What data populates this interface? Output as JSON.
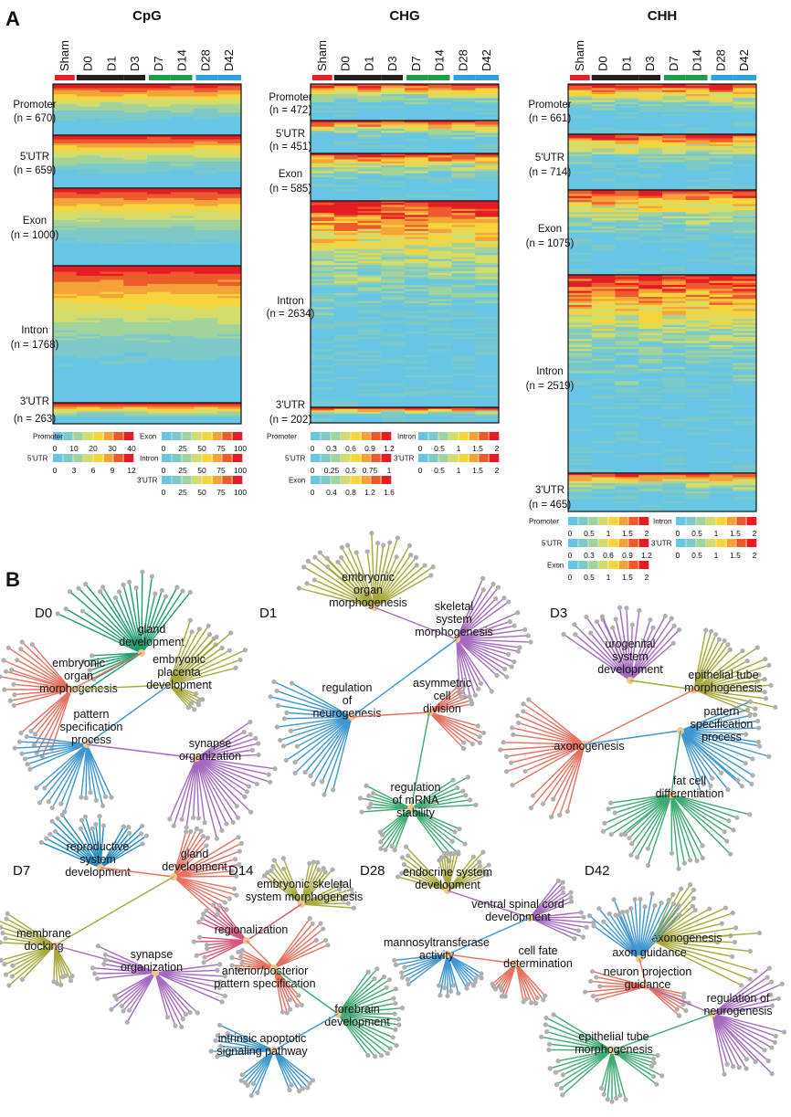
{
  "panelA": {
    "label": "A"
  },
  "panelB": {
    "label": "B"
  },
  "groups": [
    "Sham",
    "D0",
    "D1",
    "D3",
    "D7",
    "D14",
    "D28",
    "D42"
  ],
  "group_bar_colors": [
    "#e4202a",
    "#231f20",
    "#231f20",
    "#231f20",
    "#1f9e49",
    "#1f9e49",
    "#2fa3dd",
    "#2fa3dd"
  ],
  "heatmap_colors": [
    "#66c6e4",
    "#7cc9c8",
    "#a2d39b",
    "#d4dd6a",
    "#f5d43c",
    "#f5a23a",
    "#ee5a2c",
    "#e51c23"
  ],
  "heatmaps": [
    {
      "title": "CpG",
      "regions": [
        {
          "label": "Promoter",
          "n": "(n = 670)"
        },
        {
          "label": "5'UTR",
          "n": "(n = 659)"
        },
        {
          "label": "Exon",
          "n": "(n = 1000)"
        },
        {
          "label": "Intron",
          "n": "(n = 1768)"
        },
        {
          "label": "3'UTR",
          "n": "(n = 263)"
        }
      ],
      "colorbars": [
        {
          "name": "Promoter",
          "ticks": [
            "0",
            "10",
            "20",
            "30",
            "40"
          ]
        },
        {
          "name": "Exon",
          "ticks": [
            "0",
            "25",
            "50",
            "75",
            "100"
          ]
        },
        {
          "name": "5'UTR",
          "ticks": [
            "0",
            "3",
            "6",
            "9",
            "12"
          ]
        },
        {
          "name": "Intron",
          "ticks": [
            "0",
            "25",
            "50",
            "75",
            "100"
          ]
        },
        {
          "name": "3'UTR",
          "ticks": [
            "0",
            "25",
            "50",
            "75",
            "100"
          ]
        }
      ]
    },
    {
      "title": "CHG",
      "regions": [
        {
          "label": "Promoter",
          "n": "(n = 472)"
        },
        {
          "label": "5'UTR",
          "n": "(n = 451)"
        },
        {
          "label": "Exon",
          "n": "(n = 585)"
        },
        {
          "label": "Intron",
          "n": "(n = 2634)"
        },
        {
          "label": "3'UTR",
          "n": "(n = 202)"
        }
      ],
      "colorbars": [
        {
          "name": "Promoter",
          "ticks": [
            "0",
            "0.3",
            "0.6",
            "0.9",
            "1.2"
          ]
        },
        {
          "name": "Intron",
          "ticks": [
            "0",
            "0.5",
            "1",
            "1.5",
            "2"
          ]
        },
        {
          "name": "5'UTR",
          "ticks": [
            "0",
            "0.25",
            "0.5",
            "0.75",
            "1"
          ]
        },
        {
          "name": "3'UTR",
          "ticks": [
            "0",
            "0.5",
            "1",
            "1.5",
            "2"
          ]
        },
        {
          "name": "Exon",
          "ticks": [
            "0",
            "0.4",
            "0.8",
            "1.2",
            "1.6"
          ]
        }
      ]
    },
    {
      "title": "CHH",
      "regions": [
        {
          "label": "Promoter",
          "n": "(n = 661)"
        },
        {
          "label": "5'UTR",
          "n": "(n = 714)"
        },
        {
          "label": "Exon",
          "n": "(n = 1075)"
        },
        {
          "label": "Intron",
          "n": "(n = 2519)"
        },
        {
          "label": "3'UTR",
          "n": "(n = 465)"
        }
      ],
      "colorbars": [
        {
          "name": "Promoter",
          "ticks": [
            "0",
            "0.5",
            "1",
            "1.5",
            "2"
          ]
        },
        {
          "name": "Intron",
          "ticks": [
            "0",
            "0.5",
            "1",
            "1.5",
            "2"
          ]
        },
        {
          "name": "5'UTR",
          "ticks": [
            "0",
            "0.3",
            "0.6",
            "0.9",
            "1.2"
          ]
        },
        {
          "name": "3'UTR",
          "ticks": [
            "0",
            "0.5",
            "1",
            "1.5",
            "2"
          ]
        },
        {
          "name": "Exon",
          "ticks": [
            "0",
            "0.5",
            "1",
            "1.5",
            "2"
          ]
        }
      ]
    }
  ],
  "networks": [
    {
      "title": "D0",
      "terms": [
        {
          "text": "gland\ndevelopment",
          "color": "#1f9e6e"
        },
        {
          "text": "embryonic\norgan\nmorphogenesis",
          "color": "#e8705e"
        },
        {
          "text": "embryonic\nplacenta\ndevelopment",
          "color": "#a7a93a"
        },
        {
          "text": "pattern\nspecification\nprocess",
          "color": "#3f97d0"
        },
        {
          "text": "synapse\norganization",
          "color": "#a46ac0"
        }
      ]
    },
    {
      "title": "D1",
      "terms": [
        {
          "text": "embryonic\norgan\nmorphogenesis",
          "color": "#a7a93a"
        },
        {
          "text": "skeletal\nsystem\nmorphogenesis",
          "color": "#a46ac0"
        },
        {
          "text": "regulation\nof\nneurogenesis",
          "color": "#3f97d0"
        },
        {
          "text": "asymmetric\ncell\ndivision",
          "color": "#e8705e"
        },
        {
          "text": "regulation\nof mRNA\nstability",
          "color": "#3eab73"
        }
      ]
    },
    {
      "title": "D3",
      "terms": [
        {
          "text": "urogenital\nsystem\ndevelopment",
          "color": "#a46ac0"
        },
        {
          "text": "epithelial tube\nmorphogenesis",
          "color": "#a7a93a"
        },
        {
          "text": "axonogenesis",
          "color": "#e8705e"
        },
        {
          "text": "pattern\nspecification\nprocess",
          "color": "#3f97d0"
        },
        {
          "text": "fat cell\ndifferentiation",
          "color": "#3eab73"
        }
      ]
    },
    {
      "title": "D7",
      "terms": [
        {
          "text": "reproductive\nsystem\ndevelopment",
          "color": "#1f8fc0"
        },
        {
          "text": "gland\ndevelopment",
          "color": "#e8705e"
        },
        {
          "text": "membrane\ndocking",
          "color": "#a7a93a"
        },
        {
          "text": "synapse\norganization",
          "color": "#a46ac0"
        }
      ]
    },
    {
      "title": "D14",
      "terms": [
        {
          "text": "embryonic skeletal\nsystem morphogenesis",
          "color": "#a7a93a"
        },
        {
          "text": "regionalization",
          "color": "#d9557a"
        },
        {
          "text": "anterior/posterior\npattern specification",
          "color": "#e8705e"
        },
        {
          "text": "forebrain\ndevelopment",
          "color": "#3eab73"
        },
        {
          "text": "intrinsic apoptotic\nsignaling pathway",
          "color": "#3f97d0"
        }
      ]
    },
    {
      "title": "D28",
      "terms": [
        {
          "text": "endocrine system\ndevelopment",
          "color": "#a7a93a"
        },
        {
          "text": "ventral spinal cord\ndevelopment",
          "color": "#a46ac0"
        },
        {
          "text": "mannosyltransferase\nactivity",
          "color": "#3f97d0"
        },
        {
          "text": "cell fate\ndetermination",
          "color": "#e8705e"
        }
      ]
    },
    {
      "title": "D42",
      "terms": [
        {
          "text": "axonogenesis",
          "color": "#a7a93a"
        },
        {
          "text": "axon guidance",
          "color": "#3f97d0"
        },
        {
          "text": "neuron projection\nguidance",
          "color": "#e8705e"
        },
        {
          "text": "regulation of\nneurogenesis",
          "color": "#a46ac0"
        },
        {
          "text": "epithelial tube\nmorphogenesis",
          "color": "#3eab73"
        }
      ]
    }
  ]
}
